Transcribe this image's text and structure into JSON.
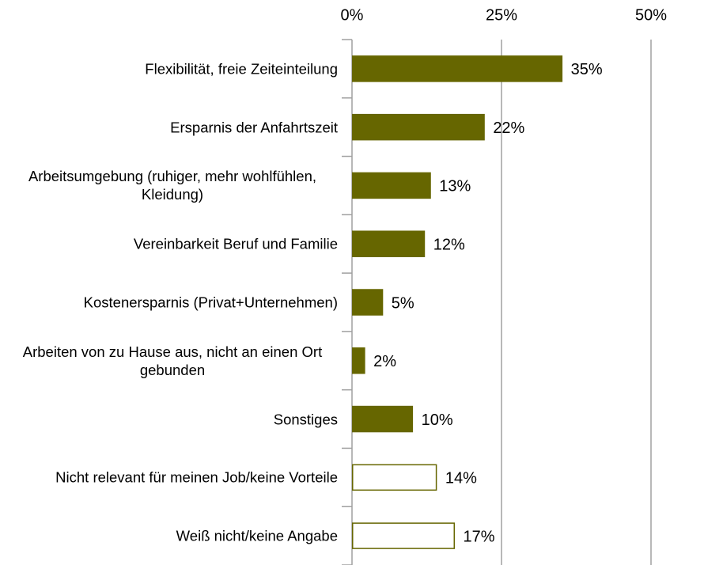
{
  "chart_data": {
    "type": "barh",
    "categories": [
      "Flexibilität, freie Zeiteinteilung",
      "Ersparnis der Anfahrtszeit",
      "Arbeitsumgebung (ruhiger, mehr wohlfühlen, Kleidung)",
      "Vereinbarkeit Beruf und Familie",
      "Kostenersparnis (Privat+Unternehmen)",
      "Arbeiten von zu Hause aus, nicht an einen Ort gebunden",
      "Sonstiges",
      "Nicht relevant für meinen Job/keine Vorteile",
      "Weiß nicht/keine Angabe"
    ],
    "values": [
      35,
      22,
      13,
      12,
      5,
      2,
      10,
      14,
      17
    ],
    "value_labels": [
      "35%",
      "22%",
      "13%",
      "12%",
      "5%",
      "2%",
      "10%",
      "14%",
      "17%"
    ],
    "colors": [
      "#666600",
      "#666600",
      "#666600",
      "#666600",
      "#666600",
      "#666600",
      "#666600",
      "#ffffff",
      "#ffffff"
    ],
    "edgecolor": "#666600",
    "xlim": [
      0,
      50
    ],
    "xticks": [
      {
        "value": 0,
        "label": "0%"
      },
      {
        "value": 25,
        "label": "25%"
      },
      {
        "value": 50,
        "label": "50%"
      }
    ],
    "grid": true
  }
}
